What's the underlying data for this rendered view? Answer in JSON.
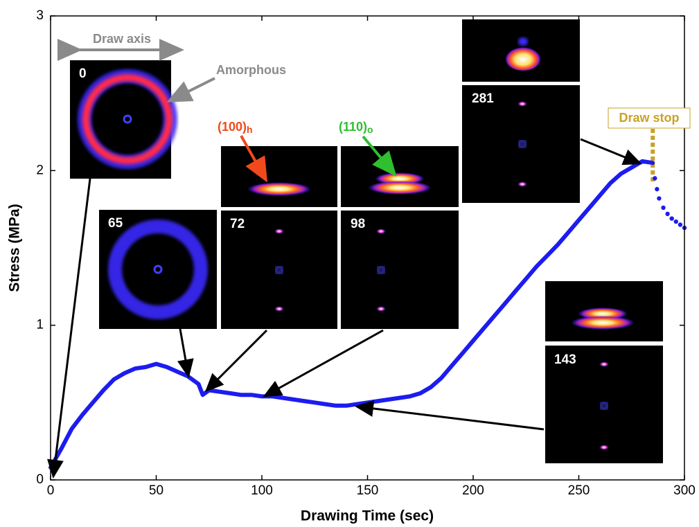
{
  "chart_data": {
    "type": "line",
    "x_label": "Drawing Time (sec)",
    "y_label": "Stress (MPa)",
    "xlim": [
      0,
      300
    ],
    "ylim": [
      0,
      3
    ],
    "xticks": [
      0,
      50,
      100,
      150,
      200,
      250,
      300
    ],
    "yticks": [
      0,
      1,
      2,
      3
    ],
    "series": [
      {
        "color": "#1c1cf0",
        "x": [
          0,
          5,
          10,
          15,
          20,
          25,
          30,
          35,
          40,
          45,
          50,
          55,
          60,
          65,
          70,
          72,
          75,
          80,
          85,
          90,
          95,
          100,
          105,
          110,
          115,
          120,
          125,
          130,
          135,
          140,
          145,
          150,
          155,
          160,
          165,
          170,
          175,
          180,
          185,
          190,
          195,
          200,
          205,
          210,
          215,
          220,
          225,
          230,
          235,
          240,
          245,
          250,
          255,
          260,
          265,
          270,
          275,
          280,
          285
        ],
        "values": [
          0.08,
          0.2,
          0.33,
          0.42,
          0.5,
          0.58,
          0.65,
          0.69,
          0.72,
          0.73,
          0.75,
          0.73,
          0.7,
          0.67,
          0.62,
          0.55,
          0.58,
          0.57,
          0.56,
          0.55,
          0.55,
          0.54,
          0.54,
          0.53,
          0.52,
          0.51,
          0.5,
          0.49,
          0.48,
          0.48,
          0.49,
          0.5,
          0.51,
          0.52,
          0.53,
          0.54,
          0.56,
          0.6,
          0.66,
          0.74,
          0.82,
          0.9,
          0.98,
          1.06,
          1.14,
          1.22,
          1.3,
          1.38,
          1.45,
          1.52,
          1.6,
          1.68,
          1.76,
          1.84,
          1.92,
          1.98,
          2.02,
          2.06,
          2.05
        ]
      },
      {
        "color": "#1c1cf0",
        "marker": "dot",
        "x": [
          286,
          287,
          288,
          290,
          292,
          294,
          296,
          298,
          300
        ],
        "values": [
          1.95,
          1.88,
          1.82,
          1.76,
          1.72,
          1.69,
          1.67,
          1.65,
          1.63
        ]
      }
    ],
    "annotations": {
      "draw_axis": "Draw axis",
      "amorphous": "Amorphous",
      "draw_stop": {
        "label": "Draw stop",
        "x": 285
      },
      "peak_100": {
        "label": "(100)",
        "sub": "h"
      },
      "peak_110": {
        "label": "(110)",
        "sub": "o"
      }
    },
    "insets": [
      "0",
      "65",
      "72",
      "98",
      "143",
      "281"
    ]
  }
}
